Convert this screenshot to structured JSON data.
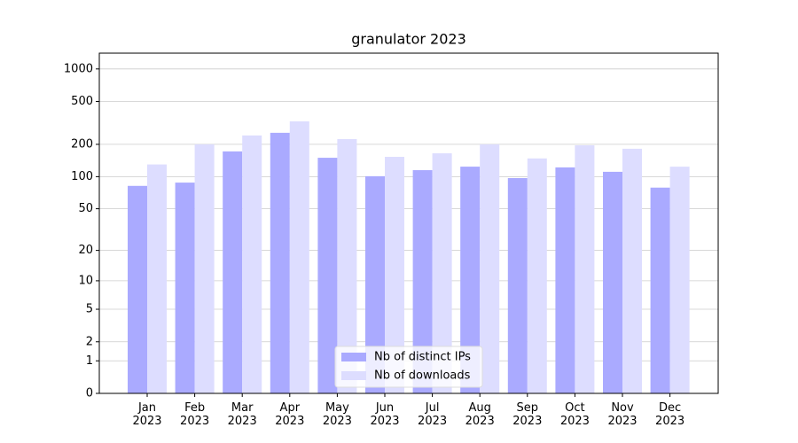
{
  "chart_data": {
    "type": "bar",
    "title": "granulator 2023",
    "categories": [
      "Jan\n2023",
      "Feb\n2023",
      "Mar\n2023",
      "Apr\n2023",
      "May\n2023",
      "Jun\n2023",
      "Jul\n2023",
      "Aug\n2023",
      "Sep\n2023",
      "Oct\n2023",
      "Nov\n2023",
      "Dec\n2023"
    ],
    "series": [
      {
        "name": "Nb of distinct IPs",
        "color": "#aaaaff",
        "values": [
          82,
          88,
          172,
          256,
          150,
          101,
          115,
          124,
          97,
          122,
          111,
          79
        ]
      },
      {
        "name": "Nb of downloads",
        "color": "#ddddff",
        "values": [
          130,
          200,
          242,
          327,
          224,
          153,
          165,
          200,
          148,
          196,
          182,
          124
        ]
      }
    ],
    "yscale": "log1p",
    "ylim": [
      0,
      1400
    ],
    "yticks": [
      0,
      1,
      2,
      5,
      10,
      20,
      50,
      100,
      200,
      500,
      1000
    ],
    "grid": true,
    "legend": "lower center"
  }
}
